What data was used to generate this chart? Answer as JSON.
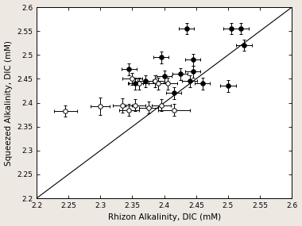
{
  "title": "",
  "xlabel": "Rhizon Alkalinity, DIC (mM)",
  "ylabel": "Squeezed Alkalinity, DIC (mM)",
  "xlim": [
    2.2,
    2.6
  ],
  "ylim": [
    2.2,
    2.6
  ],
  "xticks": [
    2.2,
    2.25,
    2.3,
    2.35,
    2.4,
    2.45,
    2.5,
    2.55,
    2.6
  ],
  "yticks": [
    2.2,
    2.25,
    2.3,
    2.35,
    2.4,
    2.45,
    2.5,
    2.55,
    2.6
  ],
  "xticklabels": [
    "2.2",
    "2.25",
    "2.3",
    "2.35",
    "2.4",
    "2.45",
    "2.5",
    "2.55",
    "2.6"
  ],
  "yticklabels": [
    "2.2",
    "2.25",
    "2.3",
    "2.35",
    "2.4",
    "2.45",
    "2.5",
    "2.55",
    "2.6"
  ],
  "one_to_one_line": [
    2.2,
    2.6
  ],
  "open_points": {
    "x": [
      2.245,
      2.3,
      2.335,
      2.345,
      2.35,
      2.355,
      2.36,
      2.375,
      2.385,
      2.39,
      2.395,
      2.405,
      2.415
    ],
    "y": [
      2.383,
      2.393,
      2.395,
      2.385,
      2.45,
      2.395,
      2.44,
      2.39,
      2.445,
      2.44,
      2.395,
      2.44,
      2.385
    ],
    "xerr": [
      0.018,
      0.015,
      0.015,
      0.015,
      0.015,
      0.015,
      0.015,
      0.015,
      0.015,
      0.015,
      0.015,
      0.015,
      0.025
    ],
    "yerr": [
      0.012,
      0.018,
      0.015,
      0.012,
      0.012,
      0.012,
      0.012,
      0.012,
      0.012,
      0.012,
      0.012,
      0.012,
      0.012
    ]
  },
  "filled_points": {
    "x": [
      2.345,
      2.355,
      2.37,
      2.395,
      2.4,
      2.415,
      2.425,
      2.435,
      2.44,
      2.445,
      2.445,
      2.46,
      2.5,
      2.505,
      2.52,
      2.525
    ],
    "y": [
      2.47,
      2.44,
      2.445,
      2.495,
      2.455,
      2.42,
      2.46,
      2.555,
      2.445,
      2.49,
      2.465,
      2.44,
      2.435,
      2.555,
      2.555,
      2.52
    ],
    "xerr": [
      0.012,
      0.012,
      0.012,
      0.012,
      0.012,
      0.012,
      0.012,
      0.012,
      0.012,
      0.012,
      0.012,
      0.012,
      0.012,
      0.012,
      0.012,
      0.012
    ],
    "yerr": [
      0.012,
      0.012,
      0.012,
      0.012,
      0.012,
      0.012,
      0.012,
      0.012,
      0.012,
      0.012,
      0.012,
      0.012,
      0.012,
      0.012,
      0.012,
      0.012
    ]
  },
  "marker_size": 4,
  "capsize": 1.5,
  "linewidth": 0.8,
  "elinewidth": 0.7,
  "background_color": "#ede8e2",
  "plot_bg_color": "#ffffff",
  "font_size": 7.5,
  "tick_label_size": 6.5
}
